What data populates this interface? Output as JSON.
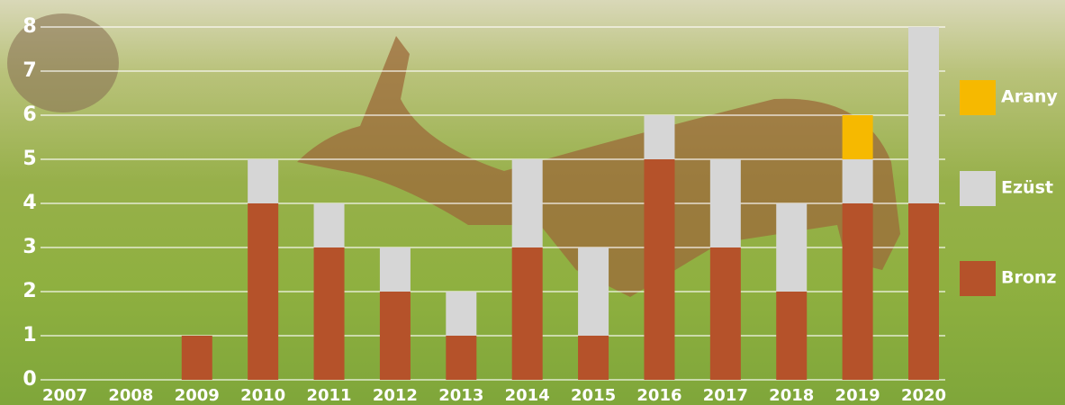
{
  "chart_data": {
    "type": "stacked-bar",
    "categories": [
      "2007",
      "2008",
      "2009",
      "2010",
      "2011",
      "2012",
      "2013",
      "2014",
      "2015",
      "2016",
      "2017",
      "2018",
      "2019",
      "2020"
    ],
    "series": [
      {
        "name": "Bronz",
        "color": "#b5522a",
        "values": [
          0,
          0,
          1,
          4,
          3,
          2,
          1,
          3,
          1,
          5,
          3,
          2,
          4,
          4
        ]
      },
      {
        "name": "Ezüst",
        "color": "#d6d6d6",
        "values": [
          0,
          0,
          0,
          1,
          1,
          1,
          1,
          2,
          2,
          1,
          2,
          2,
          1,
          4
        ]
      },
      {
        "name": "Arany",
        "color": "#f6b900",
        "values": [
          0,
          0,
          0,
          0,
          0,
          0,
          0,
          0,
          0,
          0,
          0,
          0,
          1,
          0
        ]
      }
    ],
    "ylim": [
      0,
      8
    ],
    "yticks": [
      0,
      1,
      2,
      3,
      4,
      5,
      6,
      7,
      8
    ],
    "grid": true,
    "legend": "right"
  }
}
